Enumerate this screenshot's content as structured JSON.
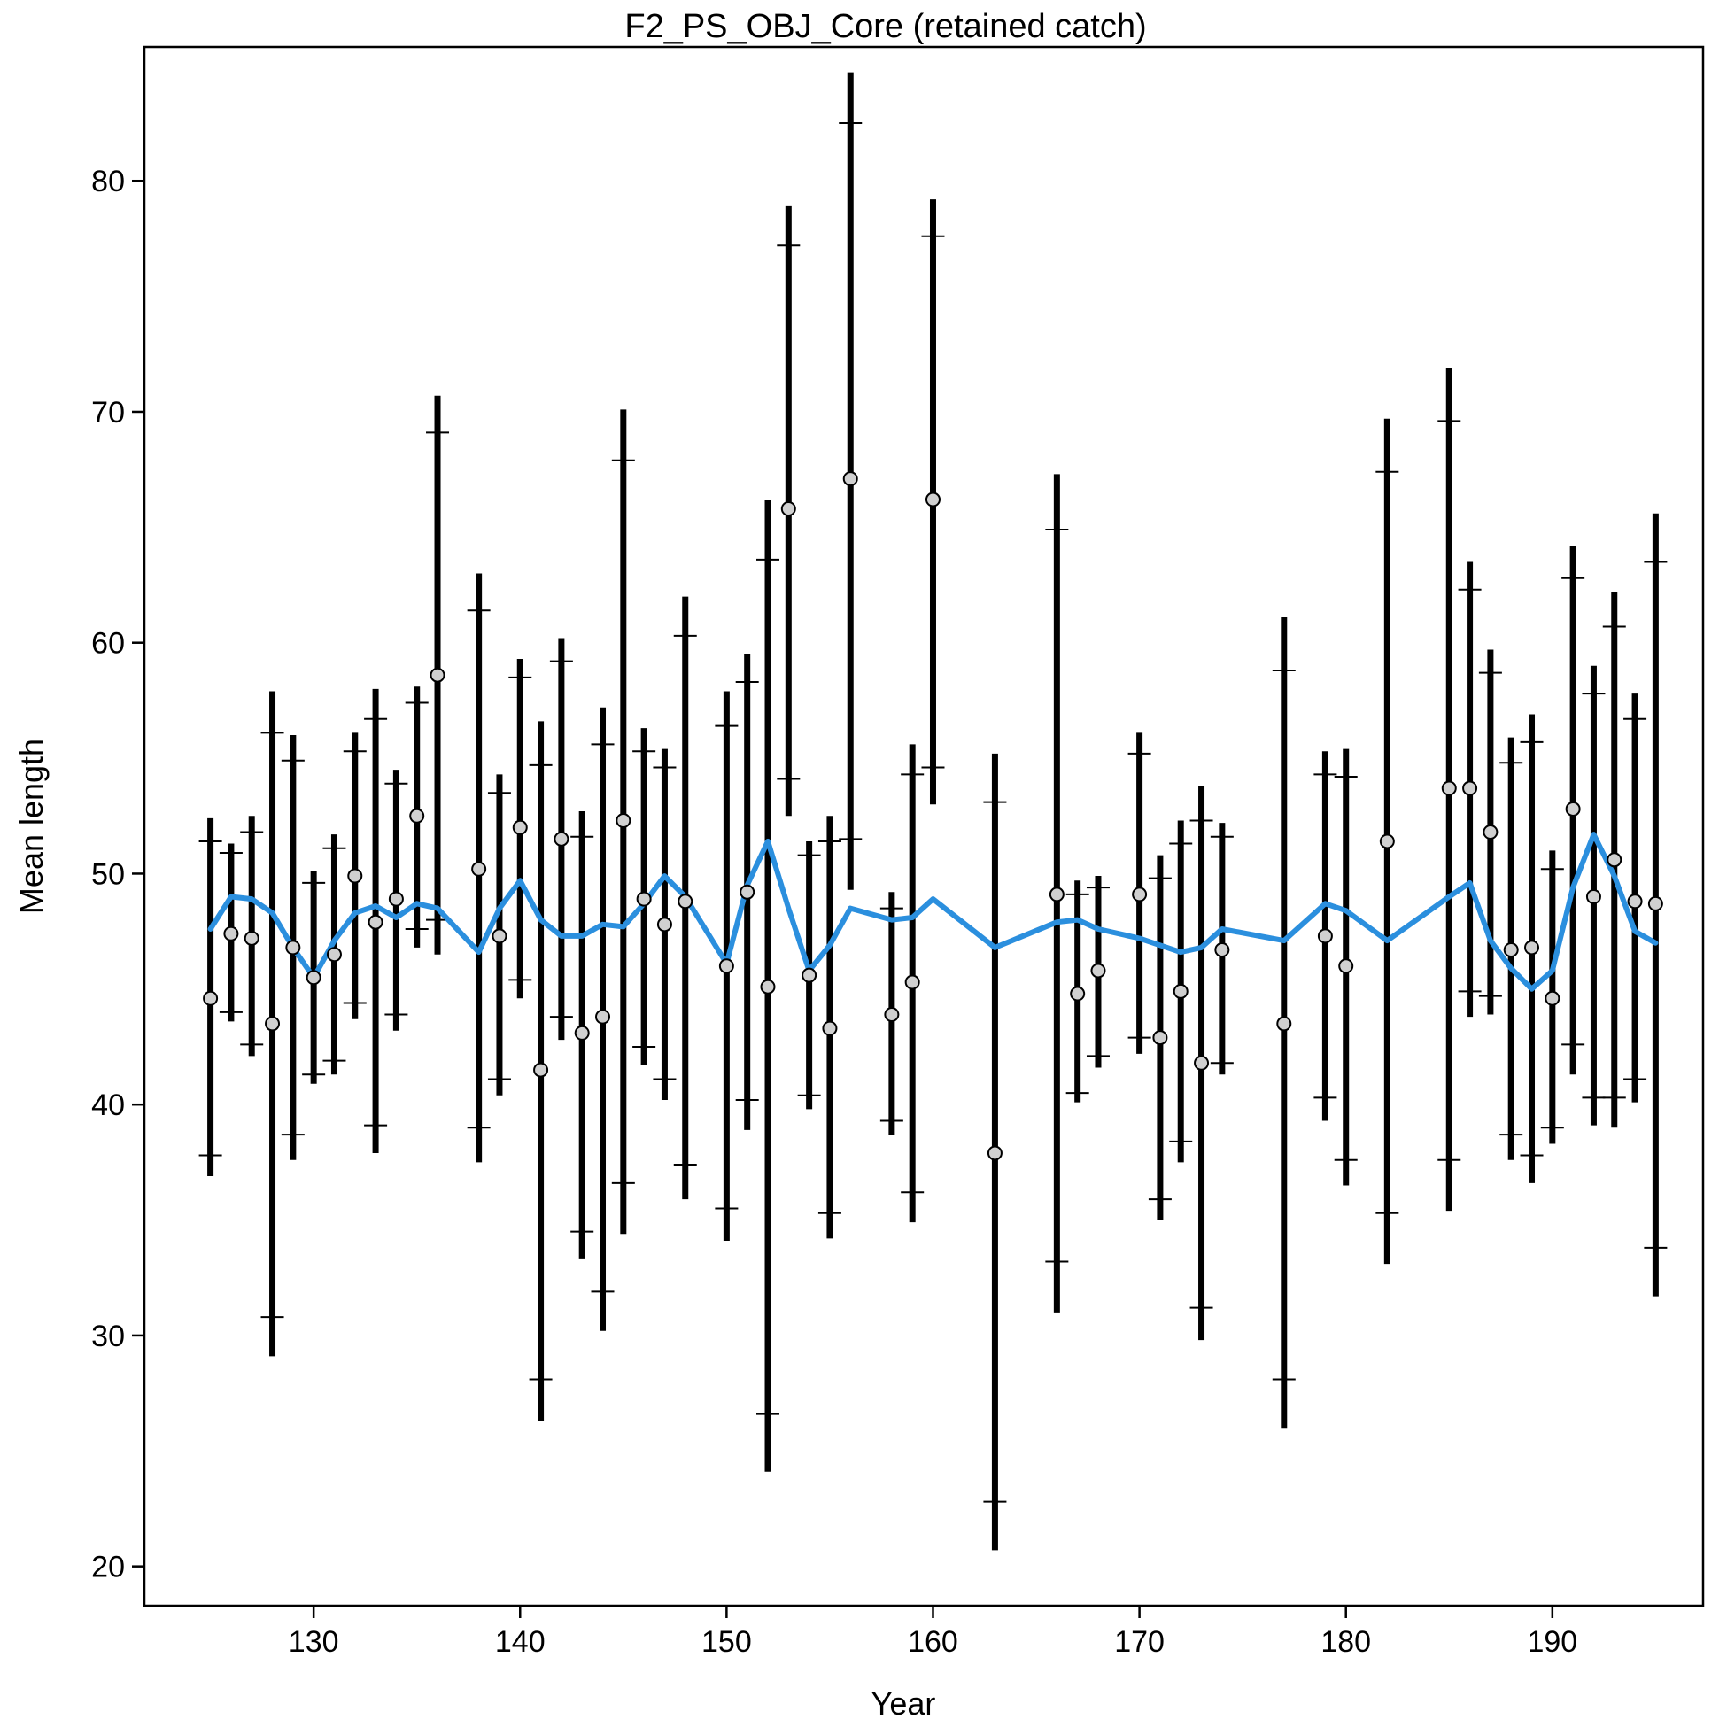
{
  "chart_data": {
    "type": "scatter",
    "title": "F2_PS_OBJ_Core (retained catch)",
    "xlabel": "Year",
    "ylabel": "Mean length",
    "xlim": [
      121.8,
      197.3
    ],
    "ylim": [
      18.3,
      85.8
    ],
    "xticks": [
      130,
      140,
      150,
      160,
      170,
      180,
      190
    ],
    "yticks": [
      20,
      30,
      40,
      50,
      60,
      70,
      80
    ],
    "grid": false,
    "legend": "none",
    "colors": {
      "observed_fill": "#d0d0d0",
      "interval": "#000000",
      "expected_line": "#2b8fde"
    },
    "series": [
      {
        "kind": "observed",
        "x": [
          125,
          126,
          127,
          128,
          129,
          130,
          131,
          132,
          133,
          134,
          135,
          136,
          138,
          139,
          140,
          141,
          142,
          143,
          144,
          145,
          146,
          147,
          148,
          150,
          151,
          152,
          153,
          154,
          155,
          156,
          158,
          159,
          160,
          163,
          166,
          167,
          168,
          170,
          171,
          172,
          173,
          174,
          177,
          179,
          180,
          182,
          185,
          186,
          187,
          188,
          189,
          190,
          191,
          192,
          193,
          194,
          195
        ],
        "y": [
          44.6,
          47.4,
          47.2,
          43.5,
          46.8,
          45.5,
          46.5,
          49.9,
          47.9,
          48.9,
          52.5,
          58.6,
          50.2,
          47.3,
          52.0,
          41.5,
          51.5,
          43.1,
          43.8,
          52.3,
          48.9,
          47.8,
          48.8,
          46.0,
          49.2,
          45.1,
          65.8,
          45.6,
          43.3,
          67.1,
          43.9,
          45.3,
          66.2,
          37.9,
          49.1,
          44.8,
          45.8,
          49.1,
          42.9,
          44.9,
          41.8,
          46.7,
          43.5,
          47.3,
          46.0,
          51.4,
          53.7,
          53.7,
          51.8,
          46.7,
          46.8,
          44.6,
          52.8,
          49.0,
          50.6,
          48.8,
          48.7
        ],
        "ci_outer_lo": [
          36.9,
          43.6,
          42.1,
          29.1,
          37.6,
          40.9,
          41.3,
          43.7,
          37.9,
          43.2,
          46.8,
          46.5,
          37.5,
          40.4,
          44.6,
          26.3,
          42.8,
          33.3,
          30.2,
          34.4,
          41.7,
          40.2,
          35.9,
          34.1,
          38.9,
          24.1,
          52.5,
          39.8,
          34.2,
          49.3,
          38.7,
          34.9,
          53.0,
          20.7,
          31.0,
          40.1,
          41.6,
          42.2,
          35.0,
          37.5,
          29.8,
          41.3,
          26.0,
          39.3,
          36.5,
          33.1,
          35.4,
          43.8,
          43.9,
          37.6,
          36.6,
          38.3,
          41.3,
          39.1,
          39.0,
          40.1,
          31.7
        ],
        "ci_inner_lo": [
          37.8,
          44.0,
          42.6,
          30.8,
          38.7,
          41.3,
          41.9,
          44.4,
          39.1,
          43.9,
          47.6,
          48.0,
          39.0,
          41.1,
          45.4,
          28.1,
          43.8,
          34.5,
          31.9,
          36.6,
          42.5,
          41.1,
          37.4,
          35.5,
          40.2,
          26.6,
          54.1,
          40.4,
          35.3,
          51.5,
          39.3,
          36.2,
          54.6,
          22.8,
          33.2,
          40.5,
          42.1,
          42.9,
          35.9,
          38.4,
          31.2,
          41.8,
          28.1,
          40.3,
          37.6,
          35.3,
          37.6,
          44.9,
          44.7,
          38.7,
          37.8,
          39.0,
          42.6,
          40.3,
          40.3,
          41.1,
          33.8
        ],
        "ci_inner_hi": [
          51.4,
          50.9,
          51.8,
          56.1,
          54.9,
          49.6,
          51.1,
          55.3,
          56.7,
          53.9,
          57.4,
          69.1,
          61.4,
          53.5,
          58.5,
          54.7,
          59.2,
          51.6,
          55.6,
          67.9,
          55.3,
          54.6,
          60.3,
          56.4,
          58.3,
          63.6,
          77.2,
          50.8,
          51.4,
          82.5,
          48.5,
          54.3,
          77.6,
          53.1,
          64.9,
          49.1,
          49.4,
          55.2,
          49.8,
          51.3,
          52.3,
          51.6,
          58.8,
          54.3,
          54.2,
          67.4,
          69.6,
          62.3,
          58.7,
          54.8,
          55.7,
          50.2,
          62.8,
          57.8,
          60.7,
          56.7,
          63.5
        ],
        "ci_outer_hi": [
          52.4,
          51.3,
          52.5,
          57.9,
          56.0,
          50.1,
          51.7,
          56.1,
          58.0,
          54.5,
          58.1,
          70.7,
          63.0,
          54.3,
          59.3,
          56.6,
          60.2,
          52.7,
          57.2,
          70.1,
          56.3,
          55.4,
          62.0,
          57.9,
          59.5,
          66.2,
          78.9,
          51.4,
          52.5,
          84.7,
          49.2,
          55.6,
          79.2,
          55.2,
          67.3,
          49.7,
          49.9,
          56.1,
          50.8,
          52.3,
          53.8,
          52.2,
          61.1,
          55.3,
          55.4,
          69.7,
          71.9,
          63.5,
          59.7,
          55.9,
          56.9,
          51.0,
          64.2,
          59.0,
          62.2,
          57.8,
          65.6
        ]
      },
      {
        "kind": "expected",
        "x": [
          125,
          126,
          127,
          128,
          129,
          130,
          131,
          132,
          133,
          134,
          135,
          136,
          138,
          139,
          140,
          141,
          142,
          143,
          144,
          145,
          146,
          147,
          148,
          150,
          151,
          152,
          153,
          154,
          155,
          156,
          158,
          159,
          160,
          163,
          166,
          167,
          168,
          170,
          171,
          172,
          173,
          174,
          177,
          179,
          180,
          182,
          185,
          186,
          187,
          188,
          189,
          190,
          191,
          192,
          193,
          194,
          195
        ],
        "y": [
          47.6,
          49.0,
          48.9,
          48.3,
          46.8,
          45.5,
          47.1,
          48.3,
          48.6,
          48.1,
          48.7,
          48.5,
          46.6,
          48.5,
          49.7,
          48.0,
          47.3,
          47.3,
          47.8,
          47.7,
          48.7,
          49.9,
          49.0,
          46.1,
          49.5,
          51.4,
          48.5,
          45.8,
          46.9,
          48.5,
          48.0,
          48.1,
          48.9,
          46.8,
          47.9,
          48.0,
          47.6,
          47.2,
          46.9,
          46.6,
          46.8,
          47.6,
          47.1,
          48.7,
          48.4,
          47.1,
          49.0,
          49.6,
          47.1,
          45.9,
          45.0,
          45.8,
          49.4,
          51.7,
          49.9,
          47.5,
          47.0
        ]
      }
    ]
  }
}
